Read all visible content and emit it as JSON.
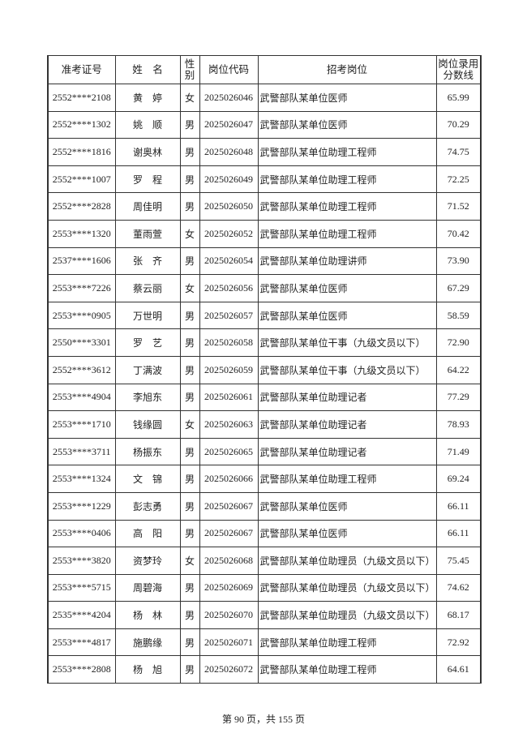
{
  "table": {
    "headers": [
      "准考证号",
      "姓　名",
      "性别",
      "岗位代码",
      "招考岗位",
      "岗位录用分数线"
    ],
    "rows": [
      [
        "2552****2108",
        "黄　婷",
        "女",
        "2025026046",
        "武警部队某单位医师",
        "65.99"
      ],
      [
        "2552****1302",
        "姚　顺",
        "男",
        "2025026047",
        "武警部队某单位医师",
        "70.29"
      ],
      [
        "2552****1816",
        "谢奥林",
        "男",
        "2025026048",
        "武警部队某单位助理工程师",
        "74.75"
      ],
      [
        "2552****1007",
        "罗　程",
        "男",
        "2025026049",
        "武警部队某单位助理工程师",
        "72.25"
      ],
      [
        "2552****2828",
        "周佳明",
        "男",
        "2025026050",
        "武警部队某单位助理工程师",
        "71.52"
      ],
      [
        "2553****1320",
        "董雨萱",
        "女",
        "2025026052",
        "武警部队某单位助理工程师",
        "70.42"
      ],
      [
        "2537****1606",
        "张　齐",
        "男",
        "2025026054",
        "武警部队某单位助理讲师",
        "73.90"
      ],
      [
        "2553****7226",
        "蔡云丽",
        "女",
        "2025026056",
        "武警部队某单位医师",
        "67.29"
      ],
      [
        "2553****0905",
        "万世明",
        "男",
        "2025026057",
        "武警部队某单位医师",
        "58.59"
      ],
      [
        "2550****3301",
        "罗　艺",
        "男",
        "2025026058",
        "武警部队某单位干事（九级文员以下）",
        "72.90"
      ],
      [
        "2552****3612",
        "丁满波",
        "男",
        "2025026059",
        "武警部队某单位干事（九级文员以下）",
        "64.22"
      ],
      [
        "2553****4904",
        "李旭东",
        "男",
        "2025026061",
        "武警部队某单位助理记者",
        "77.29"
      ],
      [
        "2553****1710",
        "钱缘圆",
        "女",
        "2025026063",
        "武警部队某单位助理记者",
        "78.93"
      ],
      [
        "2553****3711",
        "杨振东",
        "男",
        "2025026065",
        "武警部队某单位助理记者",
        "71.49"
      ],
      [
        "2553****1324",
        "文　锦",
        "男",
        "2025026066",
        "武警部队某单位助理工程师",
        "69.24"
      ],
      [
        "2553****1229",
        "彭志勇",
        "男",
        "2025026067",
        "武警部队某单位医师",
        "66.11"
      ],
      [
        "2553****0406",
        "高　阳",
        "男",
        "2025026067",
        "武警部队某单位医师",
        "66.11"
      ],
      [
        "2553****3820",
        "资梦玲",
        "女",
        "2025026068",
        "武警部队某单位助理员（九级文员以下）",
        "75.45"
      ],
      [
        "2553****5715",
        "周碧海",
        "男",
        "2025026069",
        "武警部队某单位助理员（九级文员以下）",
        "74.62"
      ],
      [
        "2535****4204",
        "杨　林",
        "男",
        "2025026070",
        "武警部队某单位助理员（九级文员以下）",
        "68.17"
      ],
      [
        "2553****4817",
        "施鹏缘",
        "男",
        "2025026071",
        "武警部队某单位助理工程师",
        "72.92"
      ],
      [
        "2553****2808",
        "杨　旭",
        "男",
        "2025026072",
        "武警部队某单位助理工程师",
        "64.61"
      ]
    ]
  },
  "footer": {
    "page_label": "第 90 页，共 155 页"
  }
}
